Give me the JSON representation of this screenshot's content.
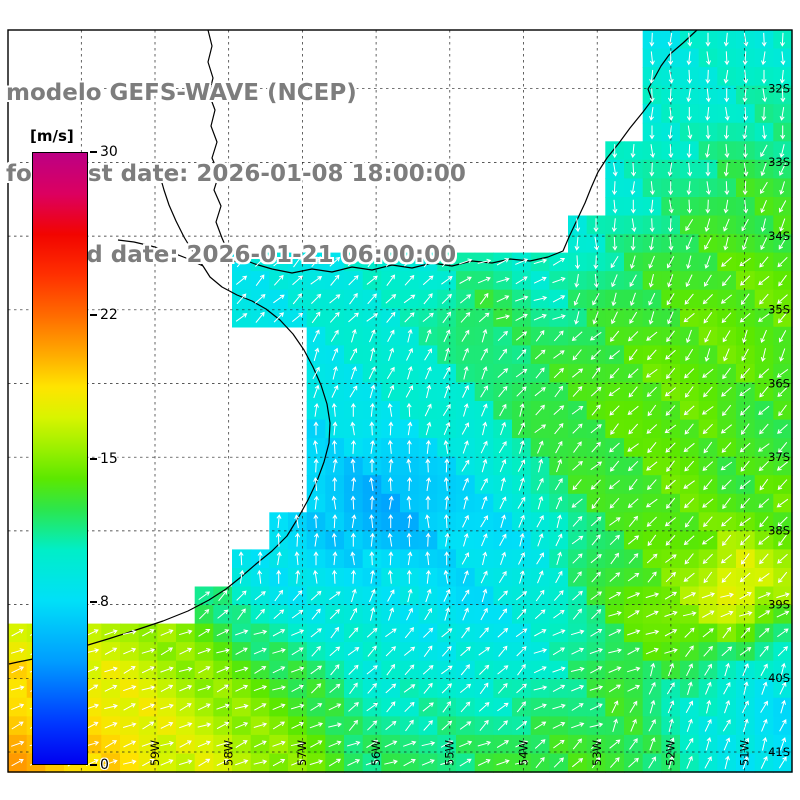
{
  "title": {
    "line1": "modelo GEFS-WAVE (NCEP)",
    "line2": "forecast date: 2026-01-08 18:00:00",
    "line3": "valid date: 2026-01-21 06:00:00"
  },
  "colorbar": {
    "unit_label": "[m/s]",
    "min": 0,
    "max": 30,
    "ticks": [
      30,
      22,
      15,
      8,
      0
    ],
    "stops": [
      {
        "v": 0,
        "c": "#0000f0"
      },
      {
        "v": 2,
        "c": "#0038ff"
      },
      {
        "v": 5,
        "c": "#009cff"
      },
      {
        "v": 8,
        "c": "#00e0f8"
      },
      {
        "v": 10.5,
        "c": "#00eec8"
      },
      {
        "v": 12.5,
        "c": "#2ce64c"
      },
      {
        "v": 14,
        "c": "#5ce800"
      },
      {
        "v": 15.5,
        "c": "#9cf000"
      },
      {
        "v": 17,
        "c": "#d8f400"
      },
      {
        "v": 18.5,
        "c": "#ffe400"
      },
      {
        "v": 20,
        "c": "#ffae00"
      },
      {
        "v": 22,
        "c": "#ff6c00"
      },
      {
        "v": 24,
        "c": "#ff3000"
      },
      {
        "v": 26,
        "c": "#f20400"
      },
      {
        "v": 28,
        "c": "#dc0060"
      },
      {
        "v": 30,
        "c": "#bc0084"
      }
    ]
  },
  "map": {
    "lat_labels": [
      "32S",
      "33S",
      "34S",
      "35S",
      "36S",
      "37S",
      "38S",
      "39S",
      "40S",
      "41S"
    ],
    "lon_labels": [
      "59W",
      "58W",
      "57W",
      "56W",
      "55W",
      "54W",
      "53W",
      "52W",
      "51W"
    ]
  },
  "chart_data": {
    "type": "heatmap",
    "quantity": "wind speed with direction arrows",
    "units": "m/s",
    "value_min": 0,
    "value_max": 30,
    "region": "Rio de la Plata / SW Atlantic, lat 32S-41S, lon 59W-51W",
    "grid": {
      "cols": 21,
      "rows": 20,
      "speed_encoding": "char index in '0123456789ABCDEFGHIJKLMNOPQRSTU' = speed m/s, '.' = land/no data",
      "dir_encoding": "hex char * 22.5 deg = arrow direction (0=E, counterclockwise), '.' = none",
      "speed_rows": [
        ".................9AAA",
        ".................AAAB",
        ".................AABB",
        "................ABBCC",
        "................ABCDD",
        "...............ABCDDD",
        "......999AAABBABCDDEE",
        "......99AAABDCBCDDEEE",
        "........9AABCCCDDEEEE",
        "........99AABCDDEEEED",
        "........899AACDDEEEDD",
        "........87789BCDDEEDD",
        "........766789CDDEEDE",
        ".......87667889CDEEFE",
        "......98888889ACDEFIG",
        ".....CA9999889ACEFGIF",
        "HHGGFECBAA9999ABDEEDB",
        "JIIHGFEDCAAAAABCDCBA9",
        "JJIIHGFEDBBBBBCCDBA98",
        "KJJIHHGFECCCCDDDDCA98"
      ],
      "dir_rows": [
        ".................cccc",
        ".................cccc",
        ".................cccc",
        "................ccccb",
        "................ccccb",
        "...............cccbbb",
        "......222222111cbbbaa",
        "......222222211bbbaaa",
        "........3333322aaabbb",
        "........33333222aaaaa",
        "........44433322aaaaa",
        "........44443332aaaaa",
        "........4444333aaaaaa",
        ".......4444433322aaaa",
        "......444444333222aaa",
        ".....2222333322211111",
        "111111112222221111222",
        "111111112222221113333",
        "111111111222221133333",
        "111111111111112223333"
      ]
    }
  }
}
